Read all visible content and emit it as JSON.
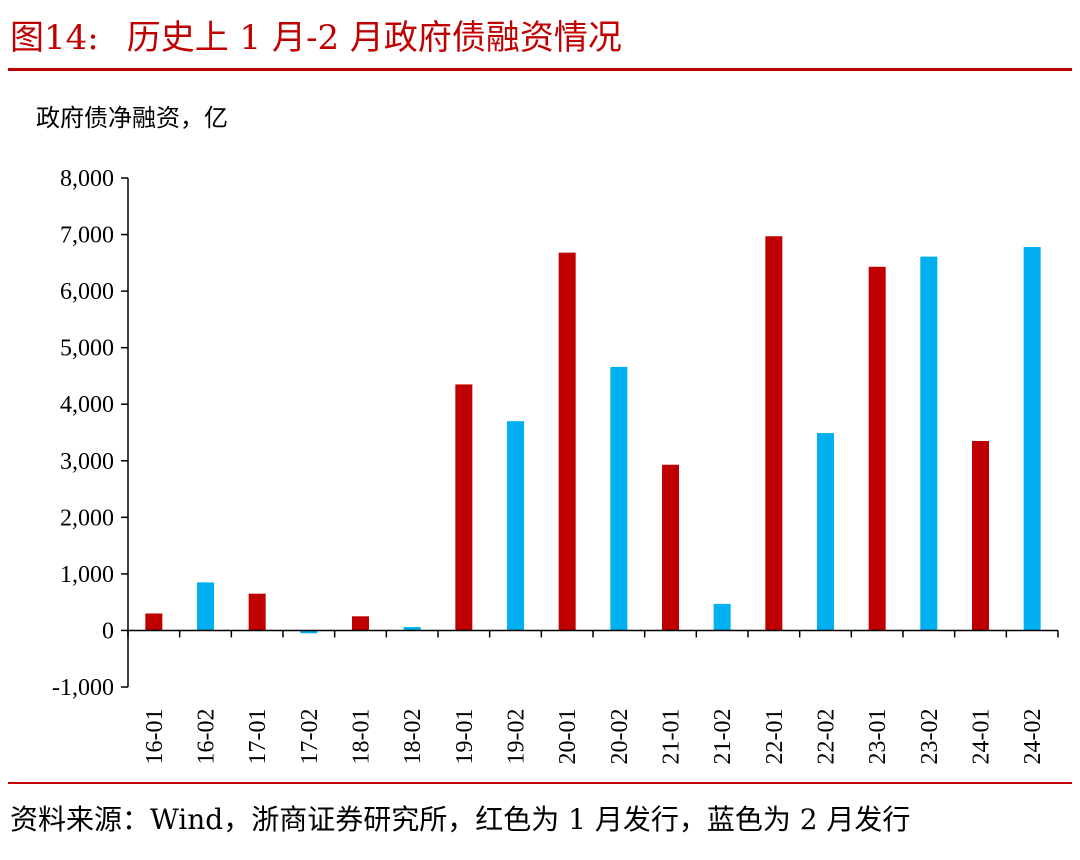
{
  "figure": {
    "number": "图14:",
    "title": "历史上 1 月-2 月政府债融资情况",
    "unit_label": "政府债净融资，亿",
    "source": "资料来源：Wind，浙商证券研究所，红色为 1 月发行，蓝色为 2 月发行"
  },
  "colors": {
    "accent": "#c00000",
    "january": "#c00000",
    "february": "#00b0f0"
  },
  "chart_data": {
    "type": "bar",
    "title": "历史上 1 月-2 月政府债融资情况",
    "ylabel": "政府债净融资，亿",
    "xlabel": "",
    "ylim": [
      -1000,
      8000
    ],
    "yticks": [
      -1000,
      0,
      1000,
      2000,
      3000,
      4000,
      5000,
      6000,
      7000,
      8000
    ],
    "ytick_labels": [
      "-1,000",
      "0",
      "1,000",
      "2,000",
      "3,000",
      "4,000",
      "5,000",
      "6,000",
      "7,000",
      "8,000"
    ],
    "categories": [
      "16-01",
      "16-02",
      "17-01",
      "17-02",
      "18-01",
      "18-02",
      "19-01",
      "19-02",
      "20-01",
      "20-02",
      "21-01",
      "21-02",
      "22-01",
      "22-02",
      "23-01",
      "23-02",
      "24-01",
      "24-02"
    ],
    "values": [
      300,
      850,
      650,
      -50,
      250,
      60,
      4350,
      3700,
      6680,
      4660,
      2930,
      470,
      6970,
      3490,
      6430,
      6610,
      3350,
      6780
    ],
    "month": [
      "1",
      "2",
      "1",
      "2",
      "1",
      "2",
      "1",
      "2",
      "1",
      "2",
      "1",
      "2",
      "1",
      "2",
      "1",
      "2",
      "1",
      "2"
    ],
    "legend": "none",
    "grid": false
  }
}
